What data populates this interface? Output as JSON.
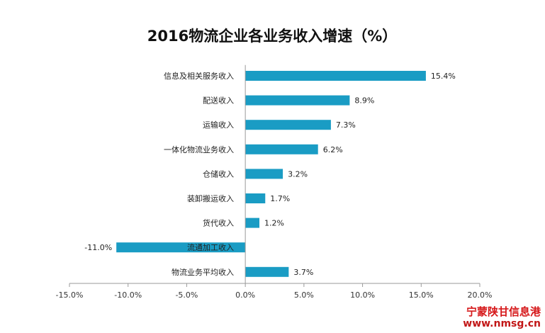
{
  "chart_data": {
    "type": "bar",
    "orientation": "horizontal",
    "title": "2016物流企业各业务收入增速（%）",
    "categories": [
      "信息及相关服务收入",
      "配送收入",
      "运输收入",
      "一体化物流业务收入",
      "仓储收入",
      "装卸搬运收入",
      "货代收入",
      "流通加工收入",
      "物流业务平均收入"
    ],
    "values": [
      15.4,
      8.9,
      7.3,
      6.2,
      3.2,
      1.7,
      1.2,
      -11.0,
      3.7
    ],
    "value_labels": [
      "15.4%",
      "8.9%",
      "7.3%",
      "6.2%",
      "3.2%",
      "1.7%",
      "1.2%",
      "-11.0%",
      "3.7%"
    ],
    "xlim": [
      -15,
      20
    ],
    "x_ticks": [
      "-15.0%",
      "-10.0%",
      "-5.0%",
      "0.0%",
      "5.0%",
      "10.0%",
      "15.0%",
      "20.0%"
    ],
    "x_tick_values": [
      -15,
      -10,
      -5,
      0,
      5,
      10,
      15,
      20
    ],
    "xlabel": "",
    "ylabel": "",
    "grid": false,
    "legend": "none",
    "bar_color": "#1a9cc4"
  },
  "watermark": {
    "text": "宁蒙陕甘信息港",
    "url": "www.nmsg.cn"
  }
}
